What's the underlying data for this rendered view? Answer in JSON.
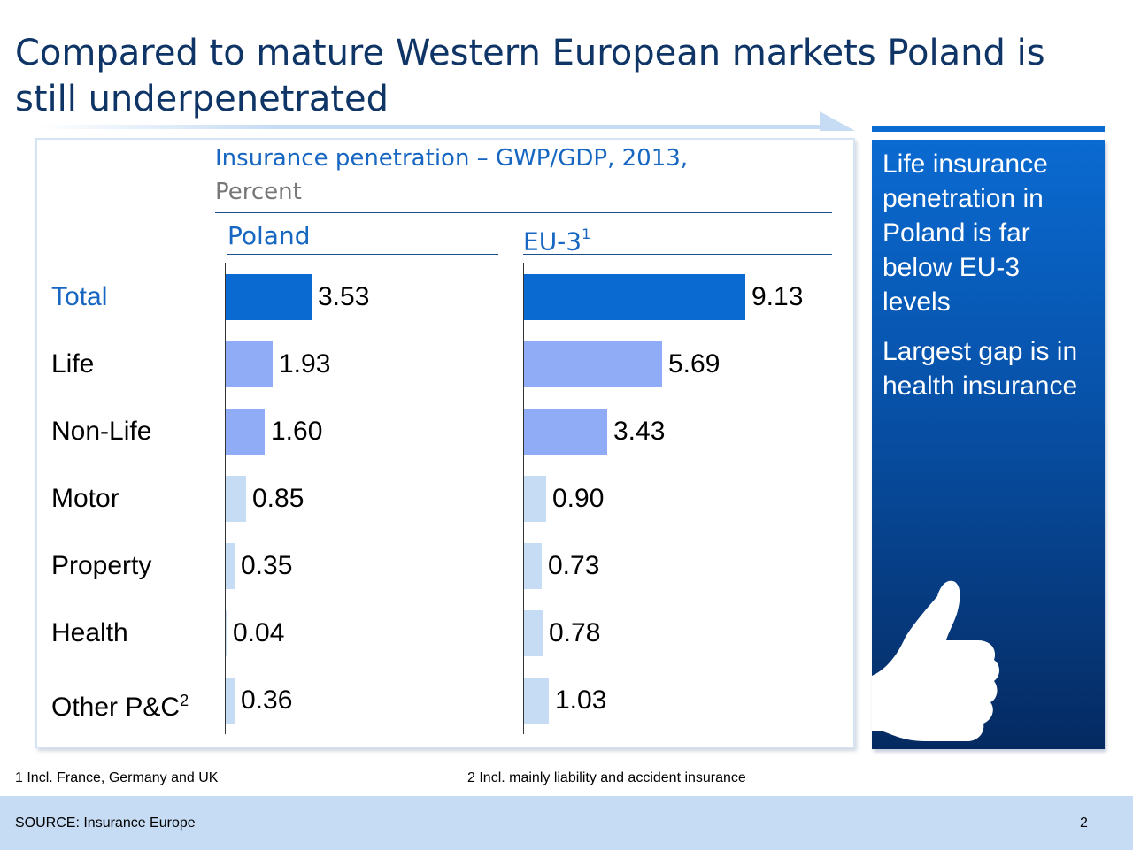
{
  "slide": {
    "title": "Compared to mature Western European markets Poland is still underpenetrated",
    "page_number": "2"
  },
  "chart_data": {
    "type": "bar",
    "orientation": "horizontal",
    "title": "Insurance penetration – GWP/GDP, 2013,",
    "subtitle": "Percent",
    "categories": [
      "Total",
      "Life",
      "Non-Life",
      "Motor",
      "Property",
      "Health",
      "Other P&C"
    ],
    "category_footnotes": {
      "Other P&C": "2"
    },
    "panels": [
      {
        "name": "Poland",
        "footnote": "",
        "values": [
          3.53,
          1.93,
          1.6,
          0.85,
          0.35,
          0.04,
          0.36
        ],
        "labels": [
          "3.53",
          "1.93",
          "1.60",
          "0.85",
          "0.35",
          "0.04",
          "0.36"
        ]
      },
      {
        "name": "EU-3",
        "footnote": "1",
        "values": [
          9.13,
          5.69,
          3.43,
          0.9,
          0.73,
          0.78,
          1.03
        ],
        "labels": [
          "9.13",
          "5.69",
          "3.43",
          "0.90",
          "0.73",
          "0.78",
          "1.03"
        ]
      }
    ],
    "bar_colors": [
      "#0a6ad1",
      "#91acf7",
      "#91acf7",
      "#c6dcf4",
      "#c6dcf4",
      "#c6dcf4",
      "#c6dcf4"
    ],
    "xlim": [
      0,
      9.13
    ],
    "grid": false,
    "legend": "none"
  },
  "side_panel": {
    "point1": "Life insurance penetration in Poland is far below EU-3 levels",
    "point2": "Largest gap is in health insurance",
    "icon": "thumbs-up-icon"
  },
  "footnotes": {
    "note1": "1 Incl. France, Germany and UK",
    "note2": "2 Incl. mainly liability and accident insurance"
  },
  "footer": {
    "source": "SOURCE: Insurance Europe"
  },
  "colors": {
    "title": "#0f3466",
    "accent": "#1767c2",
    "dark_bar": "#0a6ad1",
    "mid_bar": "#91acf7",
    "light_bar": "#c6dcf4"
  }
}
